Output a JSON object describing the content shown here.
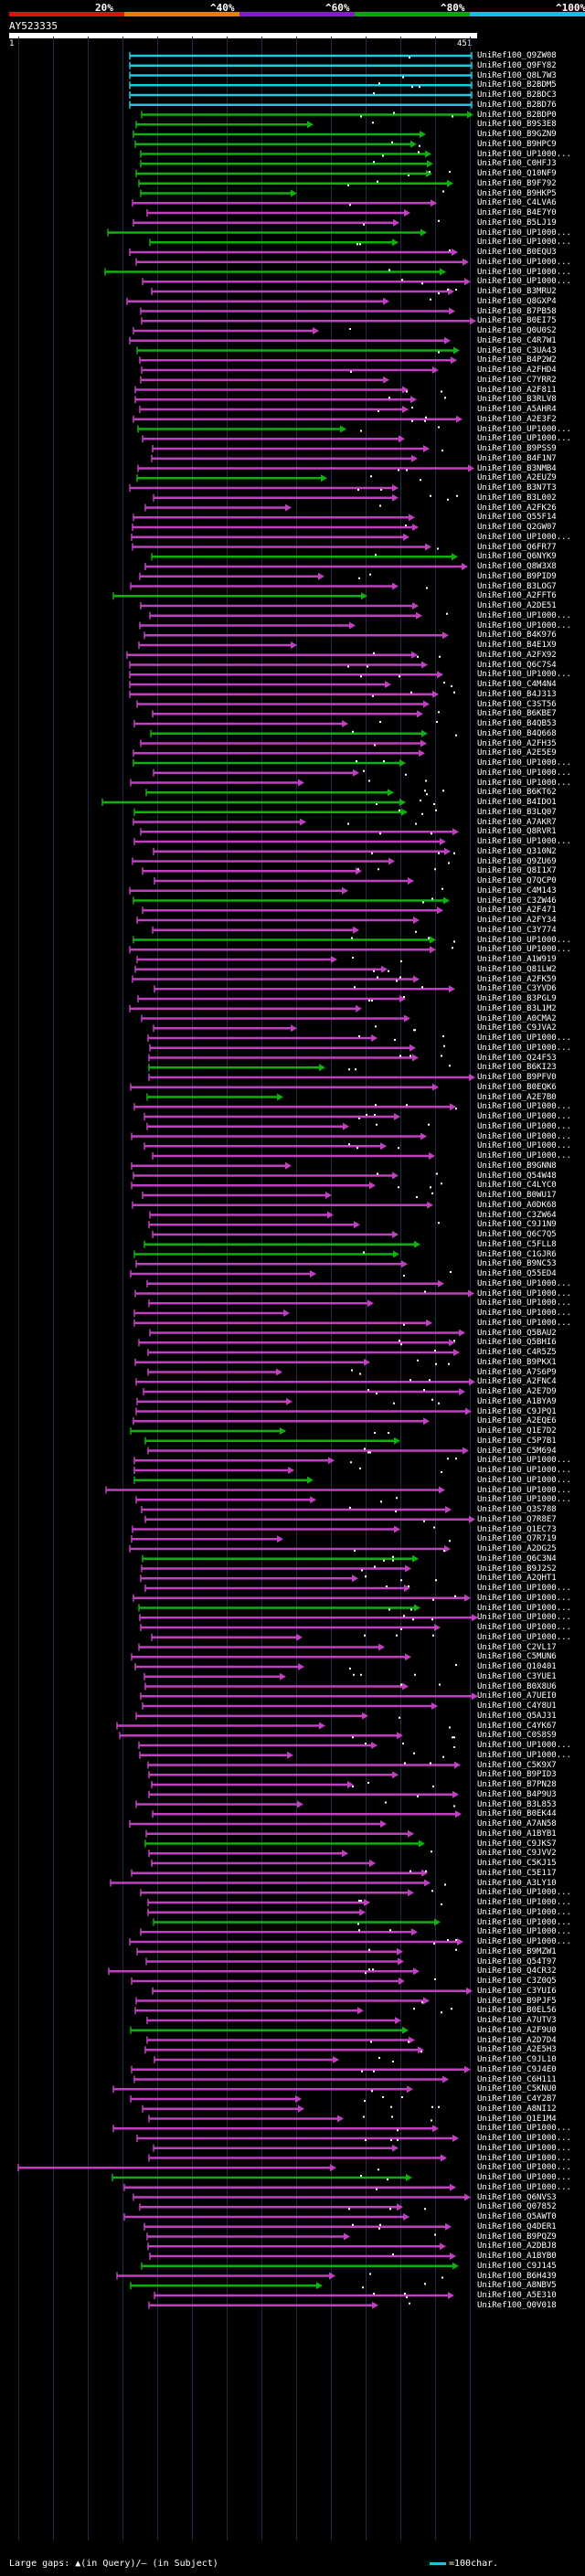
{
  "header": {
    "scale_labels": [
      "20%",
      "^40%",
      "^60%",
      "^80%",
      "^100%"
    ],
    "scale_colors": [
      "#e01010",
      "#e08010",
      "#8020c0",
      "#10a010",
      "#10c0e0"
    ],
    "query_id": "AY523335",
    "query_start": "1",
    "query_end": "451"
  },
  "colors": {
    "cyan": "#20c8e0",
    "green": "#10b010",
    "magenta": "#c040c0",
    "gap": "#ffffff"
  },
  "hits": [
    {
      "id": "UniRef100_Q9ZW08",
      "color": "cyan"
    },
    {
      "id": "UniRef100_Q9FY82",
      "color": "cyan"
    },
    {
      "id": "UniRef100_Q8L7W3",
      "color": "cyan"
    },
    {
      "id": "UniRef100_B2BDM5",
      "color": "cyan"
    },
    {
      "id": "UniRef100_B2BDC3",
      "color": "cyan"
    },
    {
      "id": "UniRef100_B2BD76",
      "color": "cyan"
    },
    {
      "id": "UniRef100_B2BDP0",
      "color": "green"
    },
    {
      "id": "UniRef100_B9S3E8",
      "color": "green"
    },
    {
      "id": "UniRef100_B9GZN9",
      "color": "green"
    },
    {
      "id": "UniRef100_B9HPC9",
      "color": "green"
    },
    {
      "id": "UniRef100_UP1000...",
      "color": "green"
    },
    {
      "id": "UniRef100_C0HFJ3",
      "color": "green"
    },
    {
      "id": "UniRef100_Q10NF9",
      "color": "green"
    },
    {
      "id": "UniRef100_B9F792",
      "color": "green"
    },
    {
      "id": "UniRef100_B9HKP5",
      "color": "green"
    },
    {
      "id": "UniRef100_C4LVA6",
      "color": "magenta"
    },
    {
      "id": "UniRef100_B4E7Y0",
      "color": "magenta"
    },
    {
      "id": "UniRef100_B5LJ19",
      "color": "magenta"
    },
    {
      "id": "UniRef100_UP1000...",
      "color": "green"
    },
    {
      "id": "UniRef100_UP1000...",
      "color": "green"
    },
    {
      "id": "UniRef100_B0EQU3",
      "color": "magenta"
    },
    {
      "id": "UniRef100_UP1000...",
      "color": "magenta"
    },
    {
      "id": "UniRef100_UP1000...",
      "color": "green"
    },
    {
      "id": "UniRef100_UP1000...",
      "color": "magenta"
    },
    {
      "id": "UniRef100_B3MRU2",
      "color": "magenta"
    },
    {
      "id": "UniRef100_Q8GXP4",
      "color": "magenta"
    },
    {
      "id": "UniRef100_B7PB58",
      "color": "magenta"
    },
    {
      "id": "UniRef100_B0EI75",
      "color": "magenta"
    },
    {
      "id": "UniRef100_Q0U0S2",
      "color": "magenta"
    },
    {
      "id": "UniRef100_C4R7W1",
      "color": "magenta"
    },
    {
      "id": "UniRef100_C3UA43",
      "color": "green"
    },
    {
      "id": "UniRef100_B4P2W2",
      "color": "magenta"
    },
    {
      "id": "UniRef100_A2FHD4",
      "color": "magenta"
    },
    {
      "id": "UniRef100_C7YRR2",
      "color": "magenta"
    },
    {
      "id": "UniRef100_A2F811",
      "color": "magenta"
    },
    {
      "id": "UniRef100_B3RLV8",
      "color": "magenta"
    },
    {
      "id": "UniRef100_A5AHR4",
      "color": "magenta"
    },
    {
      "id": "UniRef100_A2E3F2",
      "color": "magenta"
    },
    {
      "id": "UniRef100_UP1000...",
      "color": "green"
    },
    {
      "id": "UniRef100_UP1000...",
      "color": "magenta"
    },
    {
      "id": "UniRef100_B9PSS9",
      "color": "magenta"
    },
    {
      "id": "UniRef100_B4F1N7",
      "color": "magenta"
    },
    {
      "id": "UniRef100_B3NMB4",
      "color": "magenta"
    },
    {
      "id": "UniRef100_A2EUZ9",
      "color": "green"
    },
    {
      "id": "UniRef100_B3N7T3",
      "color": "magenta"
    },
    {
      "id": "UniRef100_B3L002",
      "color": "magenta"
    },
    {
      "id": "UniRef100_A2FK26",
      "color": "magenta"
    },
    {
      "id": "UniRef100_Q55F14",
      "color": "magenta"
    },
    {
      "id": "UniRef100_Q2GW07",
      "color": "magenta"
    },
    {
      "id": "UniRef100_UP1000...",
      "color": "magenta"
    },
    {
      "id": "UniRef100_Q6FR77",
      "color": "magenta"
    },
    {
      "id": "UniRef100_Q6NYK9",
      "color": "green"
    },
    {
      "id": "UniRef100_Q8W3X8",
      "color": "magenta"
    },
    {
      "id": "UniRef100_B9PID9",
      "color": "magenta"
    },
    {
      "id": "UniRef100_B3LOG7",
      "color": "magenta"
    },
    {
      "id": "UniRef100_A2FFT6",
      "color": "green"
    },
    {
      "id": "UniRef100_A2DE51",
      "color": "magenta"
    },
    {
      "id": "UniRef100_UP1000...",
      "color": "magenta"
    },
    {
      "id": "UniRef100_UP1000...",
      "color": "magenta"
    },
    {
      "id": "UniRef100_B4K976",
      "color": "magenta"
    },
    {
      "id": "UniRef100_B4E1X9",
      "color": "magenta"
    },
    {
      "id": "UniRef100_A2FX92",
      "color": "magenta"
    },
    {
      "id": "UniRef100_Q6C7S4",
      "color": "magenta"
    },
    {
      "id": "UniRef100_UP1000...",
      "color": "magenta"
    },
    {
      "id": "UniRef100_C4M4N4",
      "color": "magenta"
    },
    {
      "id": "UniRef100_B4J313",
      "color": "magenta"
    },
    {
      "id": "UniRef100_C3ST56",
      "color": "magenta"
    },
    {
      "id": "UniRef100_B6KBE7",
      "color": "magenta"
    },
    {
      "id": "UniRef100_B4QB53",
      "color": "magenta"
    },
    {
      "id": "UniRef100_B4Q668",
      "color": "green"
    },
    {
      "id": "UniRef100_A2FH35",
      "color": "magenta"
    },
    {
      "id": "UniRef100_A2E5E9",
      "color": "magenta"
    },
    {
      "id": "UniRef100_UP1000...",
      "color": "green"
    },
    {
      "id": "UniRef100_UP1000...",
      "color": "magenta"
    },
    {
      "id": "UniRef100_UP1000...",
      "color": "magenta"
    },
    {
      "id": "UniRef100_B6KT62",
      "color": "green"
    },
    {
      "id": "UniRef100_B4IDO1",
      "color": "green"
    },
    {
      "id": "UniRef100_B3LQ07",
      "color": "green"
    },
    {
      "id": "UniRef100_A7AKR7",
      "color": "magenta"
    },
    {
      "id": "UniRef100_Q8RVR1",
      "color": "magenta"
    },
    {
      "id": "UniRef100_UP1000...",
      "color": "magenta"
    },
    {
      "id": "UniRef100_Q310N2",
      "color": "magenta"
    },
    {
      "id": "UniRef100_Q9ZU69",
      "color": "magenta"
    },
    {
      "id": "UniRef100_Q8I1X7",
      "color": "magenta"
    },
    {
      "id": "UniRef100_Q7QCP0",
      "color": "magenta"
    },
    {
      "id": "UniRef100_C4M143",
      "color": "magenta"
    },
    {
      "id": "UniRef100_C3ZW46",
      "color": "green"
    },
    {
      "id": "UniRef100_A2F471",
      "color": "magenta"
    },
    {
      "id": "UniRef100_A2FY34",
      "color": "magenta"
    },
    {
      "id": "UniRef100_C3Y774",
      "color": "magenta"
    },
    {
      "id": "UniRef100_UP1000...",
      "color": "green"
    },
    {
      "id": "UniRef100_UP1000...",
      "color": "magenta"
    },
    {
      "id": "UniRef100_A1W919",
      "color": "magenta"
    },
    {
      "id": "UniRef100_Q81LW2",
      "color": "magenta"
    },
    {
      "id": "UniRef100_A2FK59",
      "color": "magenta"
    },
    {
      "id": "UniRef100_C3YVD6",
      "color": "magenta"
    },
    {
      "id": "UniRef100_B3PGL9",
      "color": "magenta"
    },
    {
      "id": "UniRef100_B3L1M2",
      "color": "magenta"
    },
    {
      "id": "UniRef100_A0CMA2",
      "color": "magenta"
    },
    {
      "id": "UniRef100_C9JVA2",
      "color": "magenta"
    },
    {
      "id": "UniRef100_UP1000...",
      "color": "magenta"
    },
    {
      "id": "UniRef100_UP1000...",
      "color": "magenta"
    },
    {
      "id": "UniRef100_Q24F53",
      "color": "magenta"
    },
    {
      "id": "UniRef100_B6KI23",
      "color": "green"
    },
    {
      "id": "UniRef100_B9PFV0",
      "color": "magenta"
    },
    {
      "id": "UniRef100_B0EQK6",
      "color": "magenta"
    },
    {
      "id": "UniRef100_A2E7B0",
      "color": "green"
    },
    {
      "id": "UniRef100_UP1000...",
      "color": "magenta"
    },
    {
      "id": "UniRef100_UP1000...",
      "color": "magenta"
    },
    {
      "id": "UniRef100_UP1000...",
      "color": "magenta"
    },
    {
      "id": "UniRef100_UP1000...",
      "color": "magenta"
    },
    {
      "id": "UniRef100_UP1000...",
      "color": "magenta"
    },
    {
      "id": "UniRef100_UP1000...",
      "color": "magenta"
    },
    {
      "id": "UniRef100_B9GNN8",
      "color": "magenta"
    },
    {
      "id": "UniRef100_Q54W48",
      "color": "magenta"
    },
    {
      "id": "UniRef100_C4LYC0",
      "color": "magenta"
    },
    {
      "id": "UniRef100_B0WU17",
      "color": "magenta"
    },
    {
      "id": "UniRef100_A0DK68",
      "color": "magenta"
    },
    {
      "id": "UniRef100_C3ZW64",
      "color": "magenta"
    },
    {
      "id": "UniRef100_C9J1N9",
      "color": "magenta"
    },
    {
      "id": "UniRef100_Q6C7Q5",
      "color": "magenta"
    },
    {
      "id": "UniRef100_C5FLL8",
      "color": "green"
    },
    {
      "id": "UniRef100_C1GJR6",
      "color": "green"
    },
    {
      "id": "UniRef100_B9NC53",
      "color": "magenta"
    },
    {
      "id": "UniRef100_Q55ED4",
      "color": "magenta"
    },
    {
      "id": "UniRef100_UP1000...",
      "color": "magenta"
    },
    {
      "id": "UniRef100_UP1000...",
      "color": "magenta"
    },
    {
      "id": "UniRef100_UP1000...",
      "color": "magenta"
    },
    {
      "id": "UniRef100_UP1000...",
      "color": "magenta"
    },
    {
      "id": "UniRef100_UP1000...",
      "color": "magenta"
    },
    {
      "id": "UniRef100_Q5BAU2",
      "color": "magenta"
    },
    {
      "id": "UniRef100_Q5BHI6",
      "color": "magenta"
    },
    {
      "id": "UniRef100_C4R5Z5",
      "color": "magenta"
    },
    {
      "id": "UniRef100_B9PKX1",
      "color": "magenta"
    },
    {
      "id": "UniRef100_A7S6P9",
      "color": "magenta"
    },
    {
      "id": "UniRef100_A2FNC4",
      "color": "magenta"
    },
    {
      "id": "UniRef100_A2E7D9",
      "color": "magenta"
    },
    {
      "id": "UniRef100_A1BYA9",
      "color": "magenta"
    },
    {
      "id": "UniRef100_C9JPQ1",
      "color": "magenta"
    },
    {
      "id": "UniRef100_A2EQE6",
      "color": "magenta"
    },
    {
      "id": "UniRef100_Q1E7D2",
      "color": "green"
    },
    {
      "id": "UniRef100_C5P7B1",
      "color": "green"
    },
    {
      "id": "UniRef100_C5M694",
      "color": "magenta"
    },
    {
      "id": "UniRef100_UP1000...",
      "color": "magenta"
    },
    {
      "id": "UniRef100_UP1000...",
      "color": "magenta"
    },
    {
      "id": "UniRef100_UP1000...",
      "color": "green"
    },
    {
      "id": "UniRef100_UP1000...",
      "color": "magenta"
    },
    {
      "id": "UniRef100_UP1000...",
      "color": "magenta"
    },
    {
      "id": "UniRef100_Q3S788",
      "color": "magenta"
    },
    {
      "id": "UniRef100_Q7R8E7",
      "color": "magenta"
    },
    {
      "id": "UniRef100_Q1EC73",
      "color": "magenta"
    },
    {
      "id": "UniRef100_Q7R719",
      "color": "magenta"
    },
    {
      "id": "UniRef100_A2DG25",
      "color": "magenta"
    },
    {
      "id": "UniRef100_Q6C3N4",
      "color": "green"
    },
    {
      "id": "UniRef100_B9J2S2",
      "color": "magenta"
    },
    {
      "id": "UniRef100_A2QHT1",
      "color": "magenta"
    },
    {
      "id": "UniRef100_UP1000...",
      "color": "magenta"
    },
    {
      "id": "UniRef100_UP1000...",
      "color": "magenta"
    },
    {
      "id": "UniRef100_UP1000...",
      "color": "green"
    },
    {
      "id": "UniRef100_UP1000...",
      "color": "magenta"
    },
    {
      "id": "UniRef100_UP1000...",
      "color": "magenta"
    },
    {
      "id": "UniRef100_UP1000...",
      "color": "magenta"
    },
    {
      "id": "UniRef100_C2VL17",
      "color": "magenta"
    },
    {
      "id": "UniRef100_C5MUN6",
      "color": "magenta"
    },
    {
      "id": "UniRef100_Q10401",
      "color": "magenta"
    },
    {
      "id": "UniRef100_C3YUE1",
      "color": "magenta"
    },
    {
      "id": "UniRef100_B0X8U6",
      "color": "magenta"
    },
    {
      "id": "UniRef100_A7UEI0",
      "color": "magenta"
    },
    {
      "id": "UniRef100_C4Y8U1",
      "color": "magenta"
    },
    {
      "id": "UniRef100_Q5AJ31",
      "color": "magenta"
    },
    {
      "id": "UniRef100_C4YK67",
      "color": "magenta"
    },
    {
      "id": "UniRef100_C0S8S9",
      "color": "magenta"
    },
    {
      "id": "UniRef100_UP1000...",
      "color": "magenta"
    },
    {
      "id": "UniRef100_UP1000...",
      "color": "magenta"
    },
    {
      "id": "UniRef100_C5K9X7",
      "color": "magenta"
    },
    {
      "id": "UniRef100_B9PID3",
      "color": "magenta"
    },
    {
      "id": "UniRef100_B7PN28",
      "color": "magenta"
    },
    {
      "id": "UniRef100_B4P9U3",
      "color": "magenta"
    },
    {
      "id": "UniRef100_B3L853",
      "color": "magenta"
    },
    {
      "id": "UniRef100_B0EK44",
      "color": "magenta"
    },
    {
      "id": "UniRef100_A7AN58",
      "color": "magenta"
    },
    {
      "id": "UniRef100_A1BYB1",
      "color": "magenta"
    },
    {
      "id": "UniRef100_C9JKS7",
      "color": "green"
    },
    {
      "id": "UniRef100_C9JVV2",
      "color": "magenta"
    },
    {
      "id": "UniRef100_C5KJ15",
      "color": "magenta"
    },
    {
      "id": "UniRef100_C5E117",
      "color": "magenta"
    },
    {
      "id": "UniRef100_A3LY10",
      "color": "magenta"
    },
    {
      "id": "UniRef100_UP1000...",
      "color": "magenta"
    },
    {
      "id": "UniRef100_UP1000...",
      "color": "magenta"
    },
    {
      "id": "UniRef100_UP1000...",
      "color": "magenta"
    },
    {
      "id": "UniRef100_UP1000...",
      "color": "green"
    },
    {
      "id": "UniRef100_UP1000...",
      "color": "magenta"
    },
    {
      "id": "UniRef100_UP1000...",
      "color": "magenta"
    },
    {
      "id": "UniRef100_B9MZW1",
      "color": "magenta"
    },
    {
      "id": "UniRef100_Q54T97",
      "color": "magenta"
    },
    {
      "id": "UniRef100_Q4CR32",
      "color": "magenta"
    },
    {
      "id": "UniRef100_C3Z0Q5",
      "color": "magenta"
    },
    {
      "id": "UniRef100_C3YUI6",
      "color": "magenta"
    },
    {
      "id": "UniRef100_B9PJF5",
      "color": "magenta"
    },
    {
      "id": "UniRef100_B0EL56",
      "color": "magenta"
    },
    {
      "id": "UniRef100_A7UTV3",
      "color": "magenta"
    },
    {
      "id": "UniRef100_A2F9U0",
      "color": "green"
    },
    {
      "id": "UniRef100_A2D7D4",
      "color": "magenta"
    },
    {
      "id": "UniRef100_A2E5H3",
      "color": "magenta"
    },
    {
      "id": "UniRef100_C9JL10",
      "color": "magenta"
    },
    {
      "id": "UniRef100_C9J4E0",
      "color": "magenta"
    },
    {
      "id": "UniRef100_C6H111",
      "color": "magenta"
    },
    {
      "id": "UniRef100_C5KNU0",
      "color": "magenta"
    },
    {
      "id": "UniRef100_C4Y2B7",
      "color": "magenta"
    },
    {
      "id": "UniRef100_A8NI12",
      "color": "magenta"
    },
    {
      "id": "UniRef100_Q1E1M4",
      "color": "magenta"
    },
    {
      "id": "UniRef100_UP1000...",
      "color": "magenta"
    },
    {
      "id": "UniRef100_UP1000...",
      "color": "magenta"
    },
    {
      "id": "UniRef100_UP1000...",
      "color": "magenta"
    },
    {
      "id": "UniRef100_UP1000...",
      "color": "magenta"
    },
    {
      "id": "UniRef100_UP1000...",
      "color": "magenta"
    },
    {
      "id": "UniRef100_UP1000...",
      "color": "green"
    },
    {
      "id": "UniRef100_UP1000...",
      "color": "magenta"
    },
    {
      "id": "UniRef100_Q6NVS3",
      "color": "magenta"
    },
    {
      "id": "UniRef100_Q07852",
      "color": "magenta"
    },
    {
      "id": "UniRef100_Q5AWT0",
      "color": "magenta"
    },
    {
      "id": "UniRef100_Q4DER1",
      "color": "magenta"
    },
    {
      "id": "UniRef100_B9PQZ9",
      "color": "magenta"
    },
    {
      "id": "UniRef100_A2DBJ8",
      "color": "magenta"
    },
    {
      "id": "UniRef100_A1BYB0",
      "color": "magenta"
    },
    {
      "id": "UniRef100_C9J145",
      "color": "green"
    },
    {
      "id": "UniRef100_B6H439",
      "color": "magenta"
    },
    {
      "id": "UniRef100_A8NBV5",
      "color": "green"
    },
    {
      "id": "UniRef100_A5E310",
      "color": "magenta"
    },
    {
      "id": "UniRef100_Q0V018",
      "color": "magenta"
    }
  ],
  "footer": {
    "legend_text": "Large gaps: ▲(in Query)/— (in Subject)",
    "scale_text": "=100char."
  }
}
